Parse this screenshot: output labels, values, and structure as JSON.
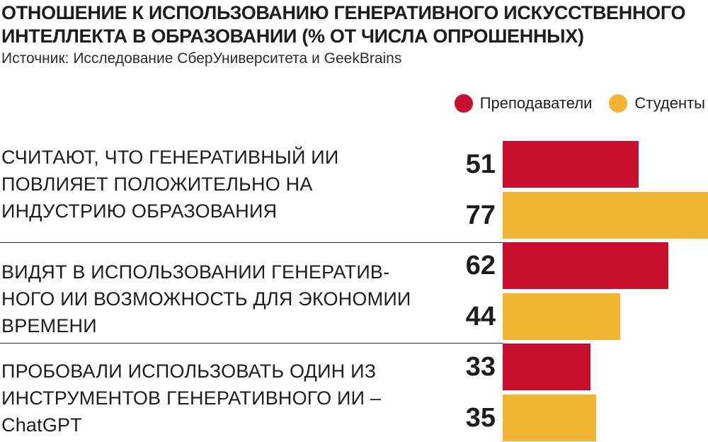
{
  "title": "ОТНОШЕНИЕ К ИСПОЛЬЗОВАНИЮ ГЕНЕРАТИВНОГО ИСКУССТВЕННОГО ИНТЕЛЛЕКТА В ОБРАЗОВАНИИ (% ОТ ЧИСЛА ОПРОШЕННЫХ)",
  "source": "Источник: Исследование СберУниверситета и GeekBrains",
  "legend": [
    {
      "label": "Преподаватели",
      "color": "#c8102e"
    },
    {
      "label": "Студенты",
      "color": "#f2b632"
    }
  ],
  "groups": [
    {
      "label": "СЧИТАЮТ, ЧТО ГЕНЕРАТИВНЫЙ ИИ ПОВЛИЯЕТ ПОЛОЖИТЕЛЬНО НА ИНДУСТРИЮ ОБРАЗОВАНИЯ",
      "tail": ""
    },
    {
      "label": "ВИДЯТ В ИСПОЛЬЗОВАНИИ ГЕНЕРАТИВ-НОГО ИИ ВОЗМОЖНОСТЬ ДЛЯ ЭКОНОМИИ ВРЕМЕНИ",
      "tail": ""
    },
    {
      "label": "ПРОБОВАЛИ ИСПОЛЬЗОВАТЬ ОДИН ИЗ ИНСТРУМЕНТОВ ГЕНЕРАТИВНОГО ИИ –",
      "tail": "ChatGPT"
    }
  ],
  "chart_data": {
    "type": "bar",
    "orientation": "horizontal",
    "title": "ОТНОШЕНИЕ К ИСПОЛЬЗОВАНИЮ ГЕНЕРАТИВНОГО ИСКУССТВЕННОГО ИНТЕЛЛЕКТА В ОБРАЗОВАНИИ (% ОТ ЧИСЛА ОПРОШЕННЫХ)",
    "categories": [
      "СЧИТАЮТ, ЧТО ГЕНЕРАТИВНЫЙ ИИ ПОВЛИЯЕТ ПОЛОЖИТЕЛЬНО НА ИНДУСТРИЮ ОБРАЗОВАНИЯ",
      "ВИДЯТ В ИСПОЛЬЗОВАНИИ ГЕНЕРАТИВ-НОГО ИИ ВОЗМОЖНОСТЬ ДЛЯ ЭКОНОМИИ ВРЕМЕНИ",
      "ПРОБОВАЛИ ИСПОЛЬЗОВАТЬ ОДИН ИЗ ИНСТРУМЕНТОВ ГЕНЕРАТИВНОГО ИИ – ChatGPT"
    ],
    "series": [
      {
        "name": "Преподаватели",
        "color": "#c8102e",
        "values": [
          51,
          62,
          33
        ]
      },
      {
        "name": "Студенты",
        "color": "#f2b632",
        "values": [
          77,
          44,
          35
        ]
      }
    ],
    "xlim": [
      0,
      77
    ],
    "grid": false,
    "legend_position": "top-right",
    "data_labels": true
  }
}
